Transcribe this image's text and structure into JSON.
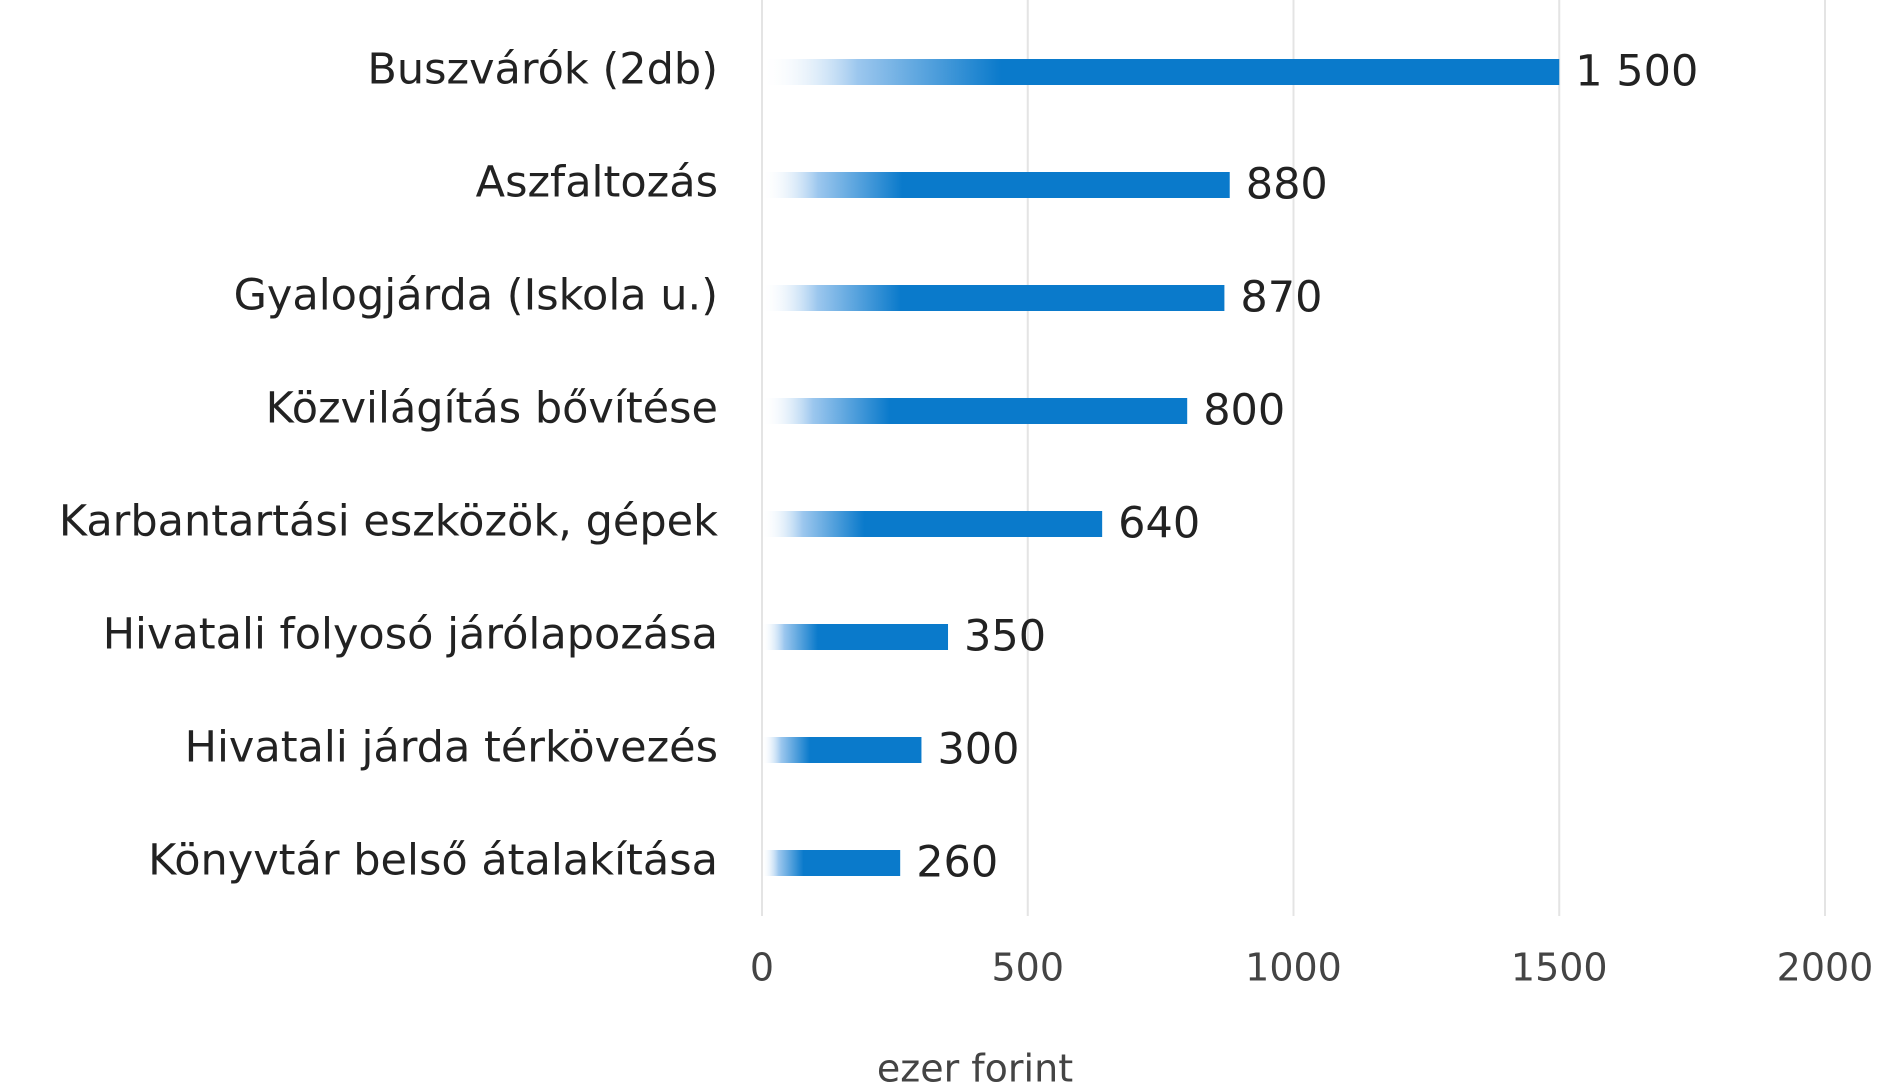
{
  "chart_data": {
    "type": "bar",
    "orientation": "horizontal",
    "categories": [
      "Buszvárók (2db)",
      "Aszfaltozás",
      "Gyalogjárda (Iskola u.)",
      "Közvilágítás bővítése",
      "Karbantartási eszközök, gépek",
      "Hivatali folyosó járólapozása",
      "Hivatali járda térkövezés",
      "Könyvtár belső átalakítása"
    ],
    "values": [
      1500,
      880,
      870,
      800,
      640,
      350,
      300,
      260
    ],
    "value_labels": [
      "1 500",
      "880",
      "870",
      "800",
      "640",
      "350",
      "300",
      "260"
    ],
    "color": "#0a7acb",
    "xlim": [
      0,
      2000
    ],
    "xticks": [
      0,
      500,
      1000,
      1500,
      2000
    ],
    "xlabel": "ezer forint",
    "grid": true
  }
}
